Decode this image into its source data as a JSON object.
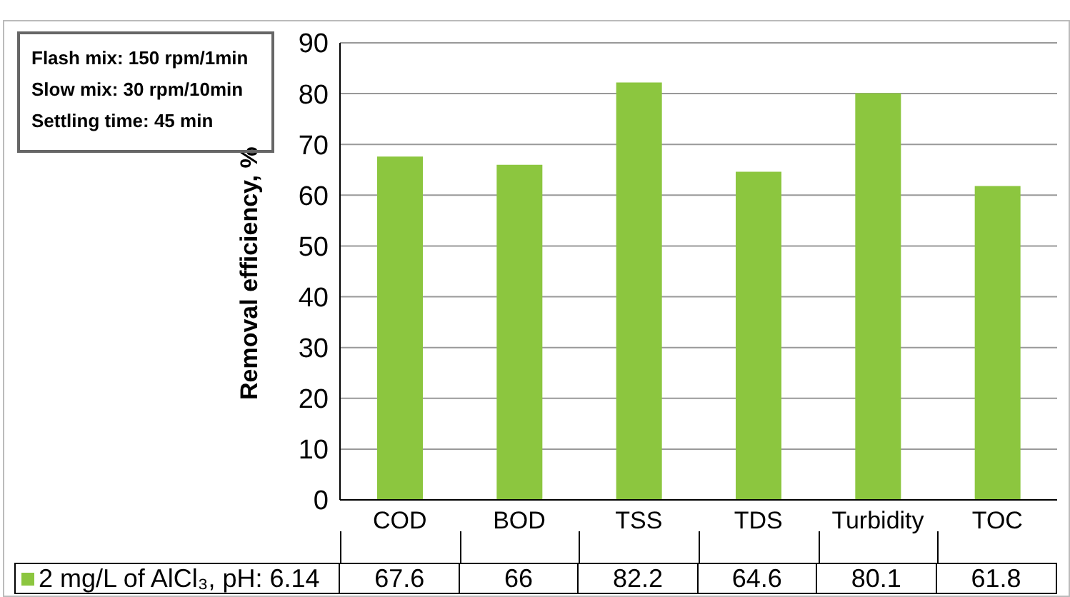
{
  "chart_data": {
    "type": "bar",
    "ylabel": "Removal efficiency, %",
    "categories": [
      "COD",
      "BOD",
      "TSS",
      "TDS",
      "Turbidity",
      "TOC"
    ],
    "series": [
      {
        "name": "2 mg/L of AlCl₃, pH: 6.14",
        "color": "#8cc63f",
        "values": [
          67.6,
          66,
          82.2,
          64.6,
          80.1,
          61.8
        ]
      }
    ],
    "ylim": [
      0,
      90
    ],
    "yticks": [
      0,
      10,
      20,
      30,
      40,
      50,
      60,
      70,
      80,
      90
    ],
    "grid": "y",
    "legend": "bottom",
    "data_labels": true,
    "annotations": [
      "Flash mix: 150 rpm/1min",
      "Slow mix: 30 rpm/10min",
      "Settling time: 45 min"
    ]
  }
}
